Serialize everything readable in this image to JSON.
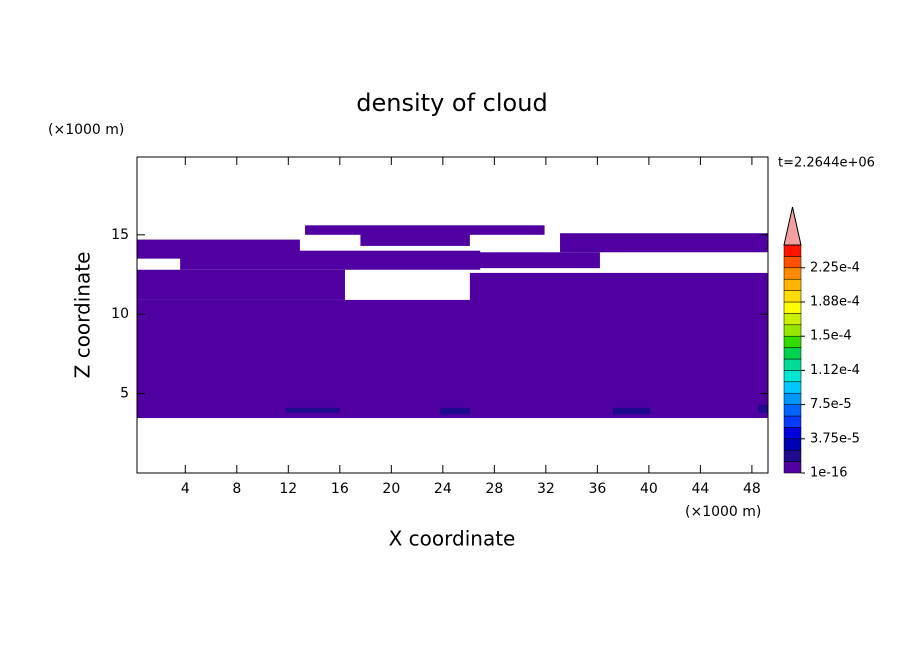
{
  "chart_data": {
    "type": "contour",
    "title": "density of cloud",
    "x_label": "X coordinate",
    "y_label": "Z coordinate",
    "x_unit": "(×1000 m)",
    "y_unit": "(×1000 m)",
    "annotation": "t=2.2644e+06",
    "xlim": [
      0.25,
      49.25
    ],
    "ylim": [
      0,
      19.9
    ],
    "xticks": [
      4,
      8,
      12,
      16,
      20,
      24,
      28,
      32,
      36,
      40,
      44,
      48
    ],
    "yticks": [
      5,
      10,
      15
    ],
    "regions": [
      {
        "x": [
          0.25,
          49.25
        ],
        "z": [
          3.46,
          10.9
        ],
        "value": 5e-06
      },
      {
        "x": [
          0.25,
          16.4
        ],
        "z": [
          10.9,
          12.8
        ],
        "value": 5e-06
      },
      {
        "x": [
          26.1,
          49.25
        ],
        "z": [
          10.6,
          12.6
        ],
        "value": 5e-06
      },
      {
        "x": [
          0.25,
          12.9
        ],
        "z": [
          13.5,
          14.7
        ],
        "value": 5e-06
      },
      {
        "x": [
          3.6,
          26.9
        ],
        "z": [
          12.8,
          14.0
        ],
        "value": 5e-06
      },
      {
        "x": [
          13.3,
          31.9
        ],
        "z": [
          15.0,
          15.6
        ],
        "value": 5e-06
      },
      {
        "x": [
          17.6,
          26.1
        ],
        "z": [
          14.3,
          15.2
        ],
        "value": 5e-06
      },
      {
        "x": [
          25.7,
          36.2
        ],
        "z": [
          12.9,
          13.9
        ],
        "value": 5e-06
      },
      {
        "x": [
          33.1,
          49.25
        ],
        "z": [
          13.9,
          15.1
        ],
        "value": 5e-06
      },
      {
        "x": [
          11.8,
          16.0
        ],
        "z": [
          3.8,
          4.1
        ],
        "value": 2e-05
      },
      {
        "x": [
          23.8,
          26.1
        ],
        "z": [
          3.7,
          4.1
        ],
        "value": 2e-05
      },
      {
        "x": [
          37.2,
          40.1
        ],
        "z": [
          3.7,
          4.1
        ],
        "value": 2e-05
      },
      {
        "x": [
          48.5,
          49.25
        ],
        "z": [
          3.8,
          4.3
        ],
        "value": 2e-05
      }
    ],
    "colorbar": {
      "lim": [
        0,
        0.00025
      ],
      "colors": [
        "#5000a0",
        "#1e0a8c",
        "#0000b4",
        "#0000dc",
        "#0a3cff",
        "#0064ff",
        "#0096ff",
        "#00c8ff",
        "#00e6d2",
        "#00dc96",
        "#00d250",
        "#32dc00",
        "#96e600",
        "#c8f000",
        "#ffff00",
        "#ffdc00",
        "#ffb400",
        "#ff8c00",
        "#ff5000",
        "#ff1400"
      ],
      "over_color": "#f4a0a0",
      "ticks": [
        1e-16,
        {
          "value": 3.75e-05,
          "label": "3.75e-5"
        },
        {
          "value": 7.5e-05,
          "label": "7.5e-5"
        },
        {
          "value": 0.0001125,
          "label": "1.12e-4"
        },
        {
          "value": 0.00015,
          "label": "1.5e-4"
        },
        {
          "value": 0.0001875,
          "label": "1.88e-4"
        },
        {
          "value": 0.000225,
          "label": "2.25e-4"
        }
      ]
    }
  }
}
